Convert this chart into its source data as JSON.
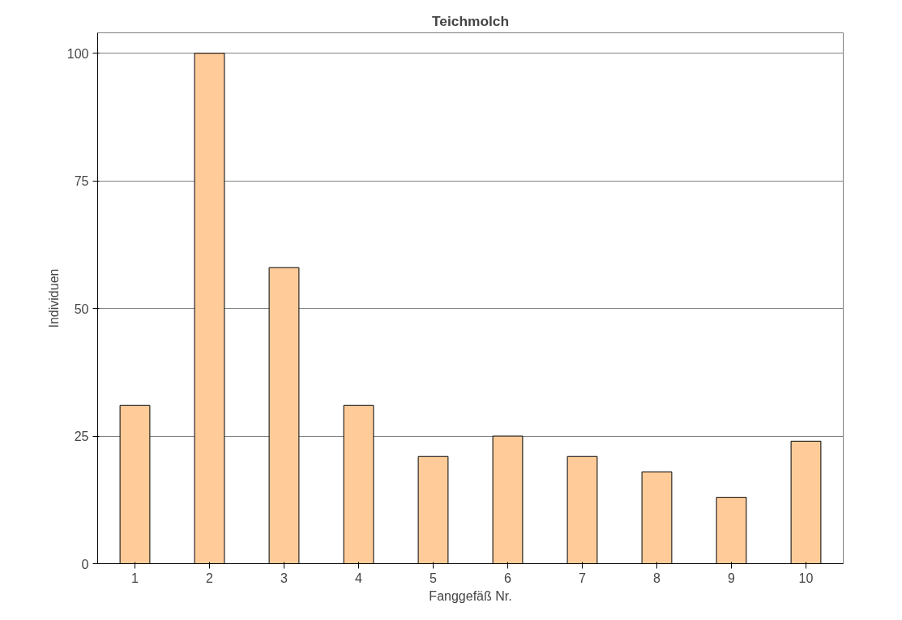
{
  "chart_data": {
    "type": "bar",
    "title": "Teichmolch",
    "xlabel": "Fanggefäß Nr.",
    "ylabel": "Individuen",
    "categories": [
      "1",
      "2",
      "3",
      "4",
      "5",
      "6",
      "7",
      "8",
      "9",
      "10"
    ],
    "values": [
      31,
      100,
      58,
      31,
      21,
      25,
      21,
      18,
      13,
      24
    ],
    "color": "#ffcc99",
    "ylim": [
      0,
      100
    ],
    "yticks": [
      0,
      25,
      50,
      75,
      100
    ],
    "grid": "y"
  }
}
